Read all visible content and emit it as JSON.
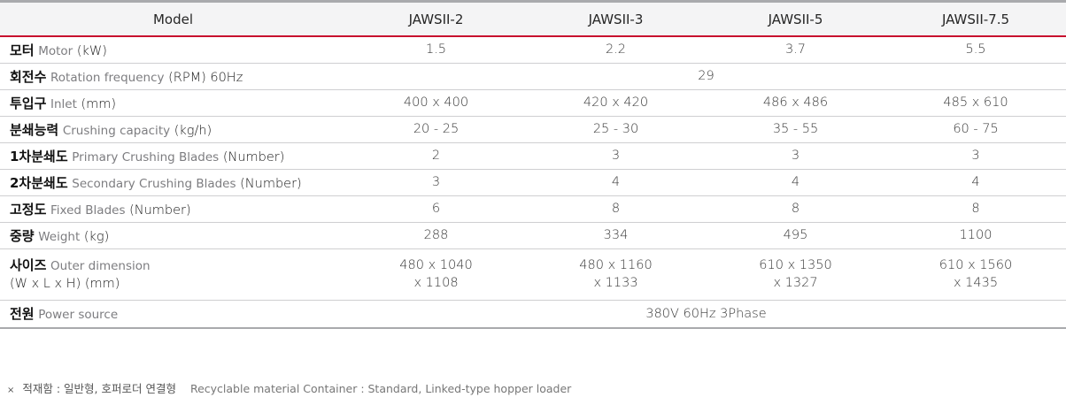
{
  "header": {
    "model_label": "Model",
    "models": [
      "JAWSII-2",
      "JAWSII-3",
      "JAWSII-5",
      "JAWSII-7.5"
    ]
  },
  "rows": {
    "motor": {
      "ko": "모터",
      "en": "Motor",
      "unit": "(kW)",
      "values": [
        "1.5",
        "2.2",
        "3.7",
        "5.5"
      ]
    },
    "rotation": {
      "ko": "회전수",
      "en": "Rotation frequency",
      "unit": "(RPM) 60Hz",
      "value": "29"
    },
    "inlet": {
      "ko": "투입구",
      "en": "Inlet",
      "unit": "(mm)",
      "values": [
        "400 x 400",
        "420 x 420",
        "486 x 486",
        "485 x 610"
      ]
    },
    "capacity": {
      "ko": "분쇄능력",
      "en": "Crushing capacity",
      "unit": "(kg/h)",
      "values": [
        "20 - 25",
        "25 - 30",
        "35 - 55",
        "60 - 75"
      ]
    },
    "primary": {
      "ko": "1차분쇄도",
      "en": "Primary Crushing Blades",
      "unit": "(Number)",
      "values": [
        "2",
        "3",
        "3",
        "3"
      ]
    },
    "secondary": {
      "ko": "2차분쇄도",
      "en": "Secondary Crushing Blades",
      "unit": "(Number)",
      "values": [
        "3",
        "4",
        "4",
        "4"
      ]
    },
    "fixed": {
      "ko": "고정도",
      "en": "Fixed Blades",
      "unit": "(Number)",
      "values": [
        "6",
        "8",
        "8",
        "8"
      ]
    },
    "weight": {
      "ko": "중량",
      "en": "Weight",
      "unit": "(kg)",
      "values": [
        "288",
        "334",
        "495",
        "1100"
      ]
    },
    "size": {
      "ko": "사이즈",
      "en": "Outer dimension",
      "unit": "(W x L x H) (mm)",
      "values_line1": [
        "480 x 1040",
        "480 x 1160",
        "610 x 1350",
        "610 x 1560"
      ],
      "values_line2": [
        "x 1108",
        "x 1133",
        "x 1327",
        "x 1435"
      ]
    },
    "power": {
      "ko": "전원",
      "en": "Power source",
      "value": "380V 60Hz 3Phase"
    }
  },
  "footnote": {
    "mark": "×",
    "ko": "적재함 : 일반형, 호퍼로더 연결형",
    "en": "Recyclable material Container : Standard,  Linked-type hopper loader"
  },
  "colors": {
    "accent": "#c8102e",
    "rule": "#cfcfd1",
    "header_bg": "#f4f4f5",
    "label_en": "#7d7d80"
  }
}
